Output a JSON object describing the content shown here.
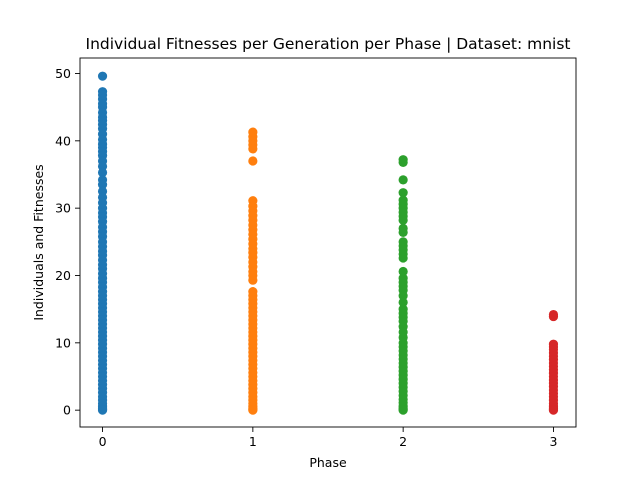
{
  "chart_data": {
    "type": "scatter",
    "title": "Individual Fitnesses per Generation per Phase | Dataset: mnist",
    "xlabel": "Phase",
    "ylabel": "Individuals and Fitnesses",
    "xlim": [
      -0.15,
      3.15
    ],
    "ylim": [
      -2.5,
      52.3
    ],
    "x_ticks": [
      0,
      1,
      2,
      3
    ],
    "y_ticks": [
      0,
      10,
      20,
      30,
      40,
      50
    ],
    "grid": false,
    "series": [
      {
        "x": 0,
        "color": "#1f77b4",
        "values": [
          49.6,
          47.3,
          46.8,
          46.2,
          45.5,
          45.0,
          44.2,
          43.5,
          43.0,
          42.4,
          41.8,
          41.0,
          40.2,
          39.5,
          39.0,
          38.4,
          37.8,
          37.0,
          36.2,
          35.3,
          34.2,
          33.5,
          32.5,
          31.6,
          30.8,
          30.0,
          29.3,
          28.7,
          28.0,
          27.2,
          26.5,
          25.8,
          25.0,
          24.3,
          23.6,
          23.0,
          22.3,
          21.6,
          21.0,
          20.3,
          19.6,
          19.0,
          18.3,
          17.6,
          17.0,
          16.4,
          15.8,
          15.2,
          14.6,
          14.0,
          13.4,
          12.8,
          12.2,
          11.6,
          11.0,
          10.4,
          9.8,
          9.2,
          8.6,
          8.0,
          7.4,
          6.8,
          6.2,
          5.6,
          5.0,
          4.4,
          3.8,
          3.2,
          2.6,
          2.0,
          1.5,
          1.0,
          0.6,
          0.3,
          0.1,
          0.0
        ]
      },
      {
        "x": 1,
        "color": "#ff7f0e",
        "values": [
          41.3,
          40.6,
          40.0,
          39.4,
          38.8,
          37.0,
          31.1,
          30.3,
          29.6,
          28.9,
          28.2,
          27.5,
          26.8,
          26.1,
          25.4,
          24.7,
          24.0,
          23.4,
          22.7,
          22.0,
          21.3,
          20.6,
          20.0,
          19.3,
          17.6,
          17.0,
          16.4,
          15.8,
          15.2,
          14.6,
          14.0,
          13.4,
          12.8,
          12.2,
          11.6,
          11.0,
          10.4,
          9.8,
          9.2,
          8.6,
          8.0,
          7.4,
          6.8,
          6.2,
          5.6,
          5.0,
          4.4,
          3.8,
          3.2,
          2.6,
          2.0,
          1.5,
          1.0,
          0.6,
          0.3,
          0.1,
          0.0
        ]
      },
      {
        "x": 2,
        "color": "#2ca02c",
        "values": [
          37.2,
          36.8,
          34.2,
          32.3,
          31.2,
          30.6,
          30.0,
          29.4,
          28.8,
          28.2,
          27.0,
          26.4,
          25.0,
          24.4,
          23.8,
          23.2,
          22.6,
          20.6,
          19.6,
          19.0,
          18.4,
          17.8,
          17.0,
          16.0,
          15.0,
          14.4,
          13.8,
          13.2,
          12.4,
          11.6,
          10.8,
          10.0,
          9.4,
          8.8,
          8.2,
          7.6,
          7.0,
          6.4,
          5.8,
          5.2,
          4.6,
          4.0,
          3.4,
          2.8,
          2.2,
          1.6,
          1.1,
          0.6,
          0.3,
          0.1,
          0.0
        ]
      },
      {
        "x": 3,
        "color": "#d62728",
        "values": [
          14.2,
          13.9,
          9.8,
          9.4,
          9.0,
          8.5,
          8.0,
          7.5,
          7.0,
          6.5,
          6.0,
          5.5,
          5.0,
          4.5,
          4.0,
          3.5,
          3.0,
          2.5,
          2.0,
          1.5,
          1.0,
          0.6,
          0.3,
          0.1,
          0.0
        ]
      }
    ]
  }
}
